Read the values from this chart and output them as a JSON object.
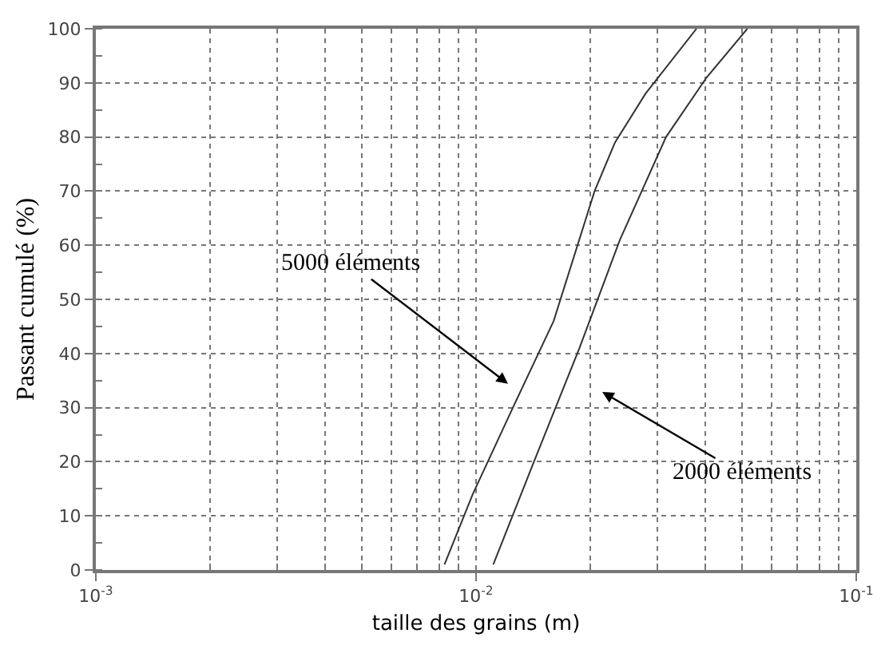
{
  "chart_data": {
    "type": "line",
    "xlabel": "taille des grains (m)",
    "ylabel": "Passant cumulé (%)",
    "log": "x",
    "grid": true,
    "line_style": "solid",
    "marker": "none",
    "xlim": [
      0.001,
      0.1
    ],
    "xticks": [
      {
        "value": 0.001,
        "label": "10$^{-3}$"
      },
      {
        "value": 0.01,
        "label": "10$^{-2}$"
      },
      {
        "value": 0.1,
        "label": "10$^{-1}$"
      }
    ],
    "ylim": [
      0,
      100
    ],
    "yticks": [
      0,
      10,
      20,
      30,
      40,
      50,
      60,
      70,
      80,
      90,
      100
    ],
    "series": [
      {
        "color": "#333333",
        "x": [
          0.00826,
          0.0098,
          0.0125,
          0.016,
          0.0205,
          0.0232,
          0.0279,
          0.038
        ],
        "values": [
          1,
          14,
          30,
          46,
          70,
          79,
          88,
          100
        ]
      },
      {
        "color": "#333333",
        "x": [
          0.0111,
          0.0142,
          0.0187,
          0.0239,
          0.0316,
          0.0404,
          0.0517
        ],
        "values": [
          1,
          20,
          41,
          61,
          80,
          91,
          100
        ]
      }
    ],
    "annotations": [
      "5000 éléments",
      "2000 éléments"
    ]
  }
}
